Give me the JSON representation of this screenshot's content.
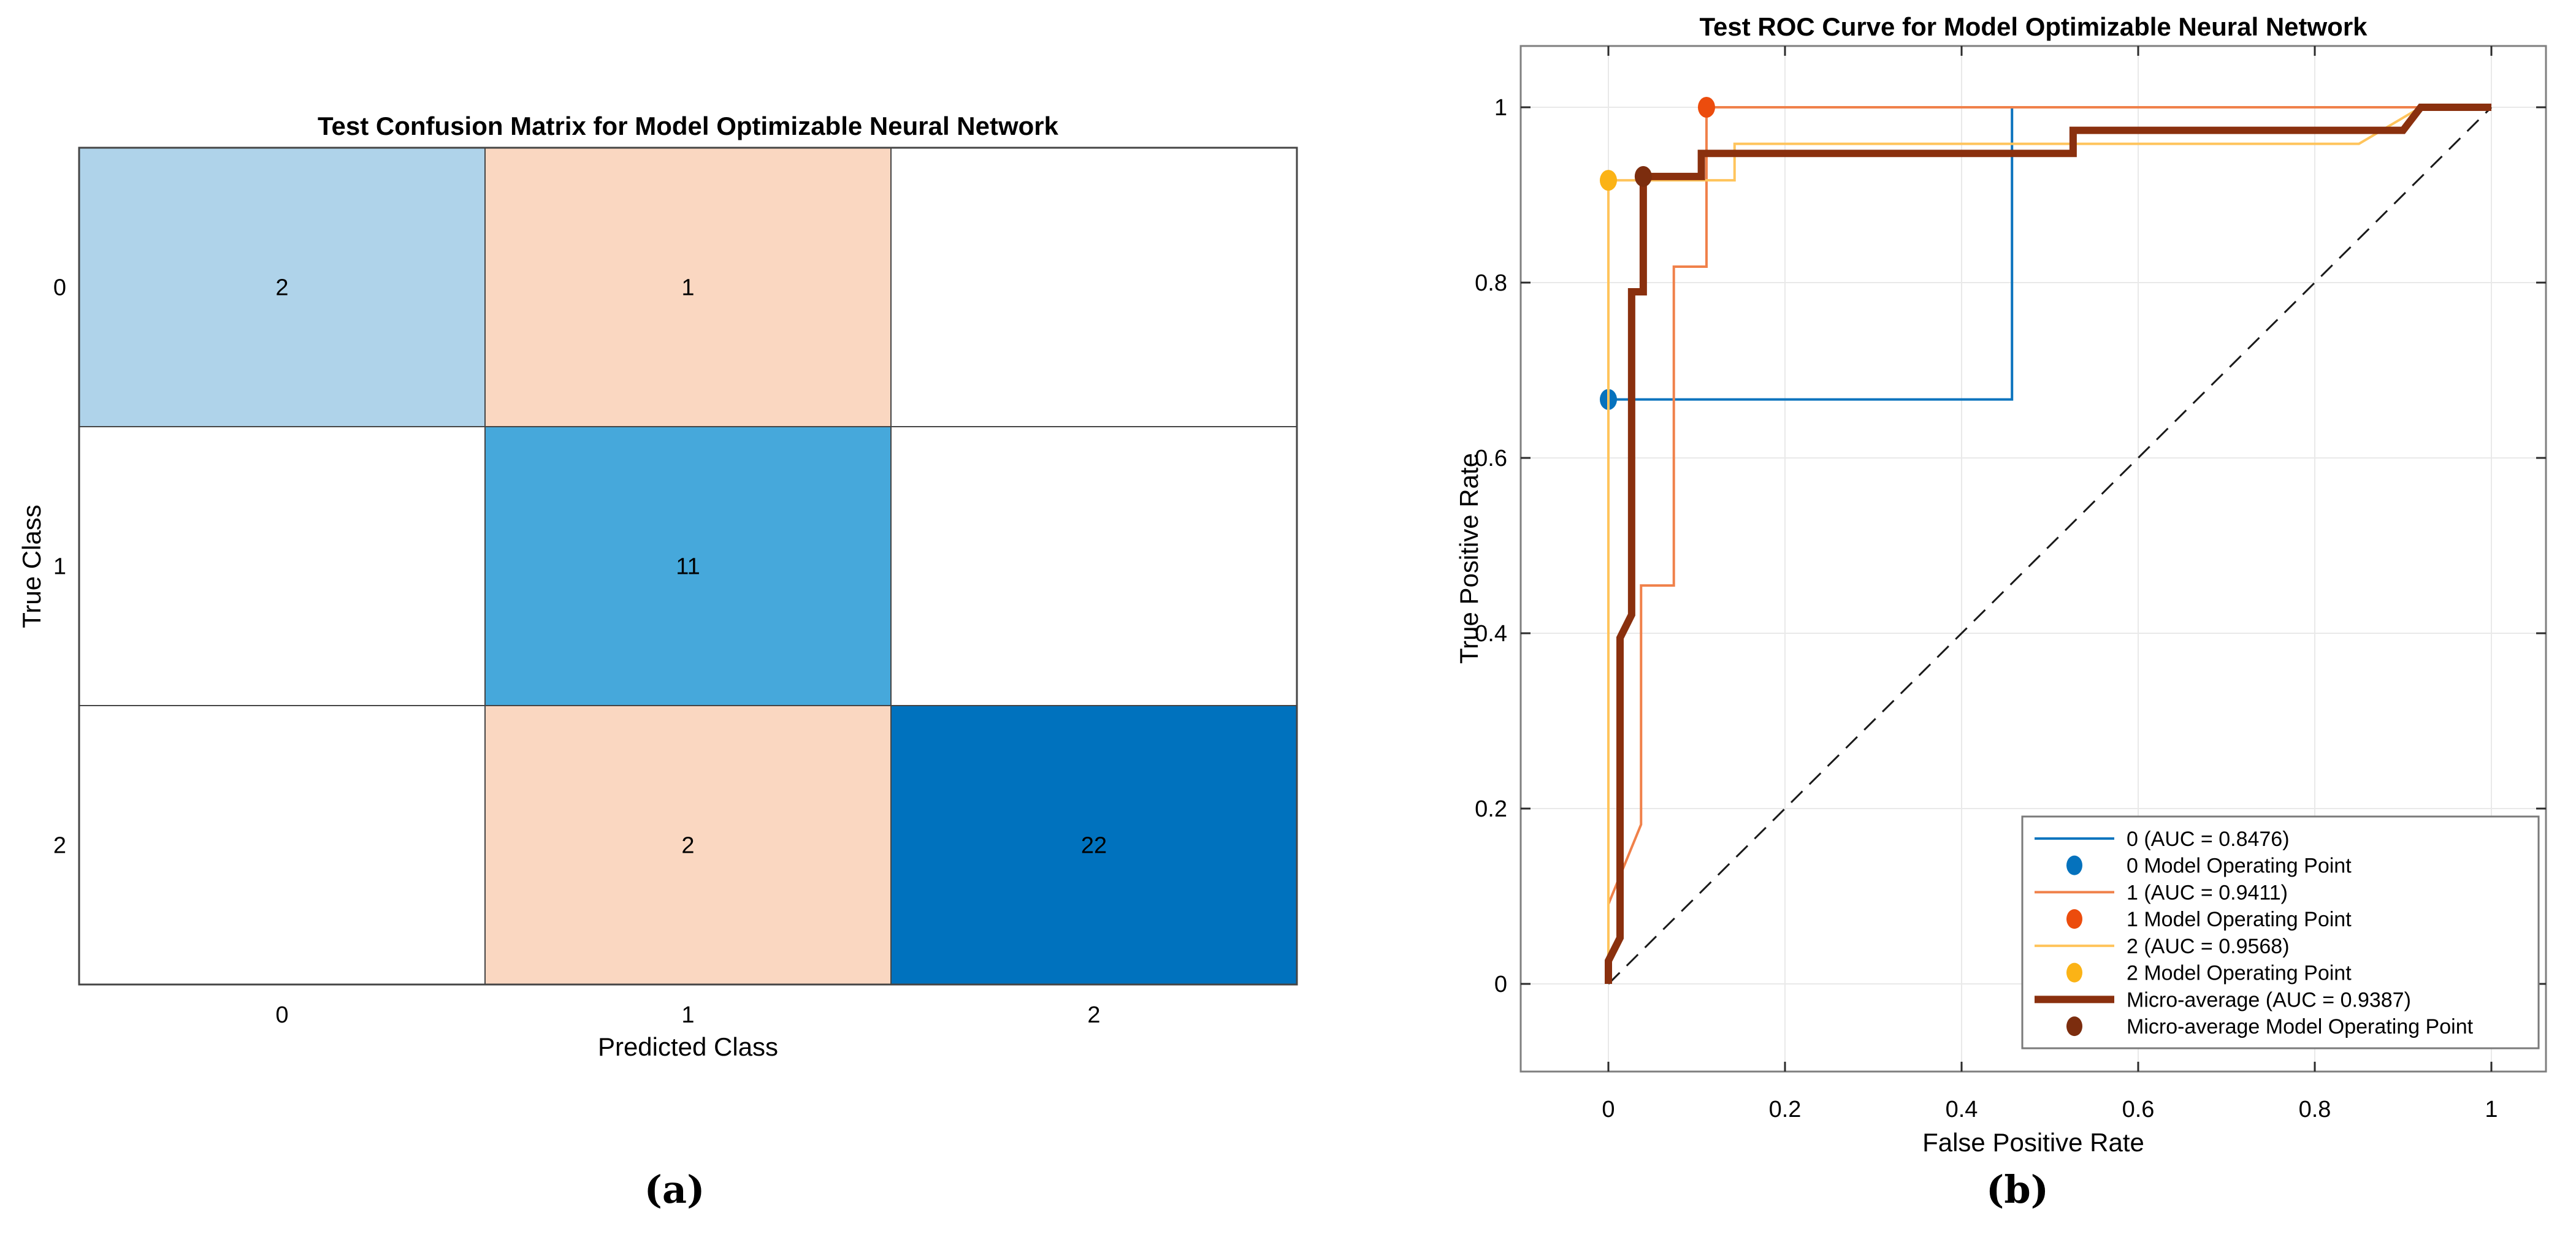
{
  "figure": {
    "caption_a": "(a)",
    "caption_b": "(b)",
    "background": "#FFFFFF"
  },
  "chart_data": [
    {
      "type": "heatmap",
      "title": "Test Confusion Matrix for Model Optimizable Neural Network",
      "xlabel": "Predicted Class",
      "ylabel": "True Class",
      "x_categories": [
        "0",
        "1",
        "2"
      ],
      "y_categories": [
        "0",
        "1",
        "2"
      ],
      "values": [
        [
          2,
          1,
          null
        ],
        [
          null,
          11,
          null
        ],
        [
          null,
          2,
          22
        ]
      ],
      "cell_colors": [
        [
          "#AFD3EA",
          "#FAD7C1",
          "#FFFFFF"
        ],
        [
          "#FFFFFF",
          "#46A8DB",
          "#FFFFFF"
        ],
        [
          "#FFFFFF",
          "#FAD7C1",
          "#0072BE"
        ]
      ],
      "value_text_colors": [
        [
          "#000000",
          "#000000",
          "#000000"
        ],
        [
          "#000000",
          "#000000",
          "#000000"
        ],
        [
          "#000000",
          "#000000",
          "#FFFFFF"
        ]
      ],
      "grid_color": "#454545"
    },
    {
      "type": "line",
      "title": "Test ROC Curve for Model Optimizable Neural Network",
      "xlabel": "False Positive Rate",
      "ylabel": "True Positive Rate",
      "xlim": [
        -0.0993,
        1.0618
      ],
      "ylim": [
        -0.1,
        1.07
      ],
      "xticks": [
        0,
        0.2,
        0.4,
        0.6,
        0.8,
        1
      ],
      "yticks": [
        0,
        0.2,
        0.4,
        0.6,
        0.8,
        1
      ],
      "xtick_labels": [
        "0",
        "0.2",
        "0.4",
        "0.6",
        "0.8",
        "1"
      ],
      "ytick_labels": [
        "0",
        "0.2",
        "0.4",
        "0.6",
        "0.8",
        "1"
      ],
      "grid": true,
      "grid_color": "#E9E9E9",
      "box_color": "#7F7F7F",
      "tick_color": "#2B2B2B",
      "legend_position": "lower-right",
      "reference_line": {
        "style": "dashed",
        "color": "#1A1A1A",
        "x": [
          0,
          1
        ],
        "y": [
          0,
          1
        ]
      },
      "series": [
        {
          "name": "0 (AUC = 0.8476)",
          "kind": "line",
          "auc": 0.8476,
          "color": "#0C74BE",
          "width": 4,
          "x": [
            0,
            0,
            0.4571,
            0.4571,
            1
          ],
          "y": [
            0,
            0.6667,
            0.6667,
            1,
            1
          ]
        },
        {
          "name": "0 Model Operating Point",
          "kind": "point",
          "color": "#0572BD",
          "x": [
            0
          ],
          "y": [
            0.6667
          ]
        },
        {
          "name": "1 (AUC = 0.9411)",
          "kind": "line",
          "auc": 0.9411,
          "color": "#F0814A",
          "width": 4,
          "x": [
            0,
            0,
            0.037,
            0.037,
            0.0741,
            0.0741,
            0.1111,
            0.1111,
            1
          ],
          "y": [
            0,
            0.0909,
            0.1818,
            0.4545,
            0.4545,
            0.8182,
            0.8182,
            1,
            1
          ]
        },
        {
          "name": "1 Model Operating Point",
          "kind": "point",
          "color": "#EC4C0D",
          "x": [
            0.1111
          ],
          "y": [
            1
          ]
        },
        {
          "name": "2 (AUC = 0.9568)",
          "kind": "line",
          "auc": 0.9568,
          "color": "#FFC45C",
          "width": 4,
          "x": [
            0,
            0,
            0.1429,
            0.1429,
            0.85,
            0.92,
            1
          ],
          "y": [
            0,
            0.9167,
            0.9167,
            0.9583,
            0.9583,
            1,
            1
          ]
        },
        {
          "name": "2 Model Operating Point",
          "kind": "point",
          "color": "#FBB316",
          "x": [
            0
          ],
          "y": [
            0.9167
          ]
        },
        {
          "name": "Micro-average (AUC = 0.9387)",
          "kind": "line",
          "auc": 0.9387,
          "color": "#8A300E",
          "width": 12,
          "x": [
            0,
            0,
            0.0132,
            0.0132,
            0.0263,
            0.0263,
            0.0395,
            0.0395,
            0.1053,
            0.1053,
            0.5263,
            0.5263,
            0.9,
            0.92,
            1
          ],
          "y": [
            0,
            0.0263,
            0.0526,
            0.3947,
            0.4211,
            0.7895,
            0.7895,
            0.9211,
            0.9211,
            0.9474,
            0.9474,
            0.9737,
            0.9737,
            1,
            1
          ]
        },
        {
          "name": "Micro-average Model Operating Point",
          "kind": "point",
          "color": "#7C2D0E",
          "x": [
            0.0395
          ],
          "y": [
            0.9211
          ]
        }
      ]
    }
  ]
}
